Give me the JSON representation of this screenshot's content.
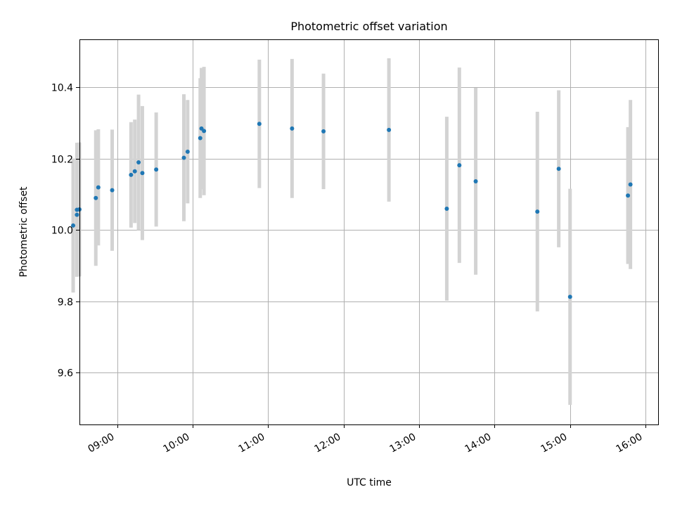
{
  "chart_data": {
    "type": "scatter",
    "title": "Photometric offset variation",
    "xlabel": "UTC time",
    "ylabel": "Photometric offset",
    "grid": true,
    "xlim": [
      "08:30",
      "16:10"
    ],
    "ylim": [
      9.455,
      10.535
    ],
    "xticks": [
      "09:00",
      "10:00",
      "11:00",
      "12:00",
      "13:00",
      "14:00",
      "15:00",
      "16:00"
    ],
    "yticks": [
      9.6,
      9.8,
      10.0,
      10.2,
      10.4
    ],
    "ytick_labels": [
      "9.6",
      "9.8",
      "10.0",
      "10.2",
      "10.4"
    ],
    "colors": {
      "point": "#1f77b4",
      "errorbar": "#d3d3d3"
    },
    "points": [
      {
        "x": "08:25",
        "y": 10.013,
        "err": 0.188
      },
      {
        "x": "08:28",
        "y": 10.057,
        "err": 0.188
      },
      {
        "x": "08:28",
        "y": 10.043,
        "err": 0.173
      },
      {
        "x": "08:30",
        "y": 10.058,
        "err": 0.188
      },
      {
        "x": "08:43",
        "y": 10.09,
        "err": 0.19
      },
      {
        "x": "08:45",
        "y": 10.12,
        "err": 0.163
      },
      {
        "x": "08:56",
        "y": 10.112,
        "err": 0.17
      },
      {
        "x": "09:11",
        "y": 10.155,
        "err": 0.148
      },
      {
        "x": "09:14",
        "y": 10.165,
        "err": 0.145
      },
      {
        "x": "09:17",
        "y": 10.19,
        "err": 0.19
      },
      {
        "x": "09:20",
        "y": 10.16,
        "err": 0.188
      },
      {
        "x": "09:31",
        "y": 10.17,
        "err": 0.16
      },
      {
        "x": "09:53",
        "y": 10.203,
        "err": 0.178
      },
      {
        "x": "09:56",
        "y": 10.22,
        "err": 0.145
      },
      {
        "x": "10:06",
        "y": 10.258,
        "err": 0.168
      },
      {
        "x": "10:07",
        "y": 10.285,
        "err": 0.17
      },
      {
        "x": "10:09",
        "y": 10.278,
        "err": 0.18
      },
      {
        "x": "10:53",
        "y": 10.298,
        "err": 0.18
      },
      {
        "x": "11:19",
        "y": 10.285,
        "err": 0.195
      },
      {
        "x": "11:44",
        "y": 10.277,
        "err": 0.162
      },
      {
        "x": "12:36",
        "y": 10.281,
        "err": 0.201
      },
      {
        "x": "13:22",
        "y": 10.06,
        "err": 0.258
      },
      {
        "x": "13:32",
        "y": 10.182,
        "err": 0.274
      },
      {
        "x": "13:45",
        "y": 10.137,
        "err": 0.262
      },
      {
        "x": "14:34",
        "y": 10.052,
        "err": 0.28
      },
      {
        "x": "14:51",
        "y": 10.172,
        "err": 0.22
      },
      {
        "x": "15:00",
        "y": 9.813,
        "err": 0.303
      },
      {
        "x": "15:46",
        "y": 10.097,
        "err": 0.192
      },
      {
        "x": "15:48",
        "y": 10.128,
        "err": 0.237
      }
    ]
  }
}
